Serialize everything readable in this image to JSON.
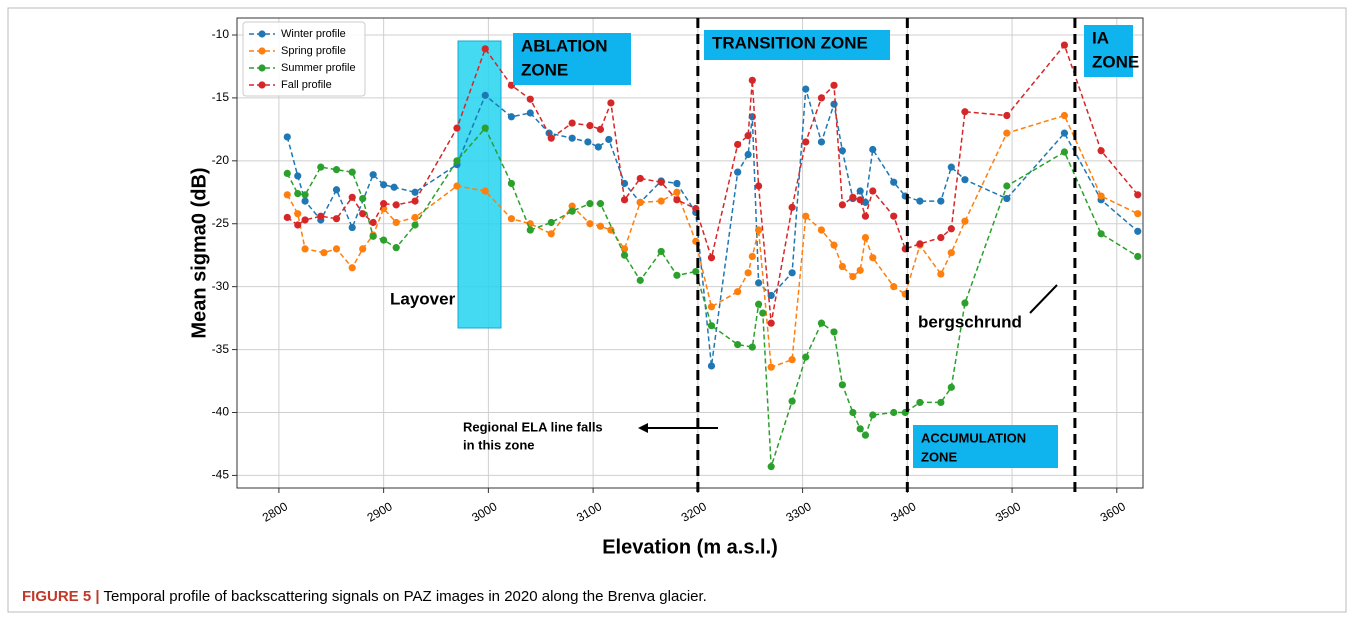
{
  "chart_data": {
    "type": "line",
    "xlabel": "Elevation (m a.s.l.)",
    "ylabel": "Mean sigma0 (dB)",
    "xlim": [
      2760,
      3625
    ],
    "xticks": [
      2800,
      2900,
      3000,
      3100,
      3200,
      3300,
      3400,
      3500,
      3600
    ],
    "ylim": [
      -46,
      -8.65
    ],
    "yticks": [
      -10,
      -15,
      -20,
      -25,
      -30,
      -35,
      -40,
      -45
    ],
    "grid": true,
    "legend": "upper left",
    "series": [
      {
        "name": "Winter profile",
        "color": "#1f77b4",
        "x": [
          2808,
          2818,
          2825,
          2840,
          2855,
          2870,
          2890,
          2900,
          2910,
          2930,
          2970,
          2997,
          3022,
          3040,
          3058,
          3080,
          3095,
          3105,
          3115,
          3130,
          3145,
          3165,
          3180,
          3198,
          3213,
          3238,
          3248,
          3252,
          3258,
          3270,
          3290,
          3303,
          3318,
          3330,
          3338,
          3348,
          3355,
          3360,
          3367,
          3387,
          3398,
          3412,
          3432,
          3442,
          3455,
          3495,
          3550,
          3585,
          3620
        ],
        "values": [
          -18.1,
          -21.2,
          -23.2,
          -24.7,
          -22.3,
          -25.3,
          -21.1,
          -21.9,
          -22.1,
          -22.5,
          -20.3,
          -14.8,
          -16.5,
          -16.2,
          -17.8,
          -18.2,
          -18.5,
          -18.9,
          -18.3,
          -21.8,
          -23.3,
          -21.6,
          -21.8,
          -24.1,
          -36.3,
          -20.9,
          -19.5,
          -16.5,
          -29.7,
          -30.7,
          -28.9,
          -14.3,
          -18.5,
          -15.5,
          -19.2,
          -23.0,
          -22.4,
          -23.3,
          -19.1,
          -21.7,
          -22.8,
          -23.2,
          -23.2,
          -20.5,
          -21.5,
          -23.0,
          -17.8,
          -23.1,
          -25.6
        ]
      },
      {
        "name": "Spring profile",
        "color": "#ff7f0e",
        "x": [
          2808,
          2818,
          2825,
          2843,
          2855,
          2870,
          2880,
          2890,
          2900,
          2912,
          2930,
          2970,
          2997,
          3022,
          3040,
          3060,
          3080,
          3097,
          3107,
          3117,
          3130,
          3145,
          3165,
          3180,
          3198,
          3213,
          3238,
          3248,
          3252,
          3258,
          3270,
          3290,
          3303,
          3318,
          3330,
          3338,
          3348,
          3355,
          3360,
          3367,
          3387,
          3398,
          3412,
          3432,
          3442,
          3455,
          3495,
          3550,
          3585,
          3620
        ],
        "values": [
          -22.7,
          -24.2,
          -27.0,
          -27.3,
          -27.0,
          -28.5,
          -27.0,
          -25.9,
          -23.8,
          -24.9,
          -24.5,
          -22.0,
          -22.4,
          -24.6,
          -25.0,
          -25.8,
          -23.6,
          -25.0,
          -25.2,
          -25.5,
          -27.0,
          -23.3,
          -23.2,
          -22.5,
          -26.4,
          -31.6,
          -30.4,
          -28.9,
          -27.6,
          -25.5,
          -36.4,
          -35.8,
          -24.4,
          -25.5,
          -26.7,
          -28.4,
          -29.2,
          -28.7,
          -26.1,
          -27.7,
          -30.0,
          -30.6,
          -26.7,
          -29.0,
          -27.3,
          -24.8,
          -17.8,
          -16.4,
          -22.8,
          -24.2
        ]
      },
      {
        "name": "Summer profile",
        "color": "#2ca02c",
        "x": [
          2808,
          2818,
          2825,
          2840,
          2855,
          2870,
          2880,
          2890,
          2900,
          2912,
          2930,
          2970,
          2997,
          3022,
          3040,
          3060,
          3080,
          3097,
          3107,
          3130,
          3145,
          3165,
          3180,
          3198,
          3213,
          3238,
          3252,
          3258,
          3262,
          3270,
          3290,
          3303,
          3318,
          3330,
          3338,
          3348,
          3355,
          3360,
          3367,
          3387,
          3398,
          3412,
          3432,
          3442,
          3455,
          3495,
          3550,
          3585,
          3620
        ],
        "values": [
          -21.0,
          -22.6,
          -22.7,
          -20.5,
          -20.7,
          -20.9,
          -23.0,
          -26.0,
          -26.3,
          -26.9,
          -25.1,
          -20.0,
          -17.4,
          -21.8,
          -25.5,
          -24.9,
          -24.0,
          -23.4,
          -23.4,
          -27.5,
          -29.5,
          -27.2,
          -29.1,
          -28.8,
          -33.1,
          -34.6,
          -34.8,
          -31.4,
          -32.1,
          -44.3,
          -39.1,
          -35.6,
          -32.9,
          -33.6,
          -37.8,
          -40.0,
          -41.3,
          -41.8,
          -40.2,
          -40.0,
          -40.0,
          -39.2,
          -39.2,
          -38.0,
          -31.3,
          -22.0,
          -19.3,
          -25.8,
          -27.6
        ]
      },
      {
        "name": "Fall profile",
        "color": "#d62728",
        "x": [
          2808,
          2818,
          2825,
          2840,
          2855,
          2870,
          2880,
          2890,
          2900,
          2912,
          2930,
          2970,
          2997,
          3022,
          3040,
          3060,
          3080,
          3097,
          3107,
          3117,
          3130,
          3145,
          3165,
          3180,
          3198,
          3213,
          3238,
          3248,
          3252,
          3258,
          3270,
          3290,
          3303,
          3318,
          3330,
          3338,
          3348,
          3355,
          3360,
          3367,
          3387,
          3398,
          3412,
          3432,
          3442,
          3455,
          3495,
          3550,
          3585,
          3620
        ],
        "values": [
          -24.5,
          -25.1,
          -24.7,
          -24.4,
          -24.6,
          -22.9,
          -24.2,
          -24.9,
          -23.4,
          -23.5,
          -23.2,
          -17.4,
          -11.1,
          -14.0,
          -15.1,
          -18.2,
          -17.0,
          -17.2,
          -17.5,
          -15.4,
          -23.1,
          -21.4,
          -21.7,
          -23.1,
          -23.8,
          -27.7,
          -18.7,
          -18.0,
          -13.6,
          -22.0,
          -32.9,
          -23.7,
          -18.5,
          -15.0,
          -14.0,
          -23.5,
          -22.9,
          -23.1,
          -24.4,
          -22.4,
          -24.4,
          -27.0,
          -26.6,
          -26.1,
          -25.4,
          -16.1,
          -16.4,
          -10.8,
          -19.2,
          -22.7
        ]
      }
    ],
    "zone_boundaries": [
      3200,
      3400,
      3560
    ],
    "annotations": {
      "ablation": [
        "ABLATION",
        "ZONE"
      ],
      "transition": [
        "TRANSITION ZONE"
      ],
      "ia": [
        "IA",
        "ZONE"
      ],
      "accumulation": [
        "ACCUMULATION",
        "ZONE"
      ],
      "layover": "Layover",
      "bergschrund": "bergschrund",
      "ela": [
        "Regional ELA line falls",
        "in this zone"
      ]
    }
  },
  "caption": {
    "label": "FIGURE 5 |",
    "text": " Temporal profile of backscattering signals on PAZ images in 2020 along the Brenva glacier."
  }
}
